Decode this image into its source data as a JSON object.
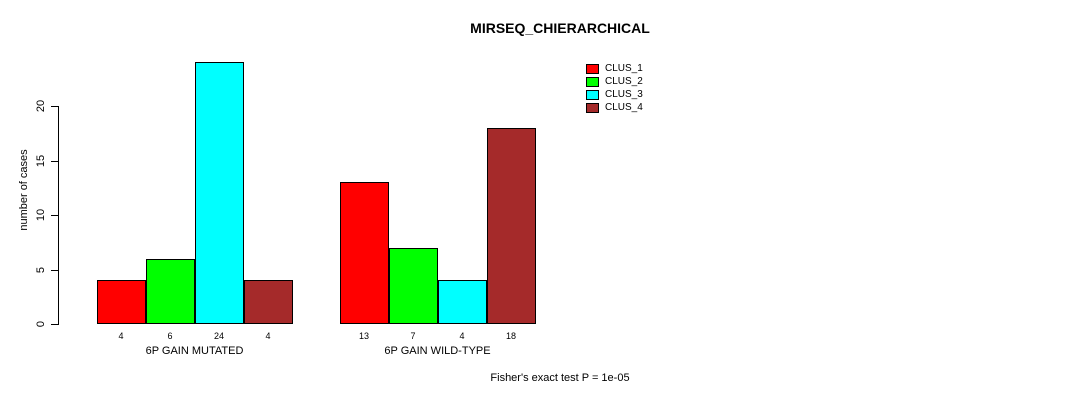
{
  "chart_data": {
    "type": "bar",
    "title": "MIRSEQ_CHIERARCHICAL",
    "ylabel": "number of cases",
    "xlabel": "",
    "categories": [
      "6P GAIN MUTATED",
      "6P GAIN WILD-TYPE"
    ],
    "series": [
      {
        "name": "CLUS_1",
        "color": "#ff0000",
        "values": [
          4,
          13
        ]
      },
      {
        "name": "CLUS_2",
        "color": "#00ff00",
        "values": [
          6,
          7
        ]
      },
      {
        "name": "CLUS_3",
        "color": "#00ffff",
        "values": [
          24,
          4
        ]
      },
      {
        "name": "CLUS_4",
        "color": "#a52a2a",
        "values": [
          4,
          18
        ]
      }
    ],
    "bar_labels": [
      [
        4,
        6,
        24,
        4
      ],
      [
        13,
        7,
        4,
        18
      ]
    ],
    "yticks": [
      0,
      5,
      10,
      15,
      20
    ],
    "ylim": [
      0,
      25
    ],
    "grid": false,
    "legend_position": "top-right",
    "annotation": "Fisher's exact test P = 1e-05"
  }
}
